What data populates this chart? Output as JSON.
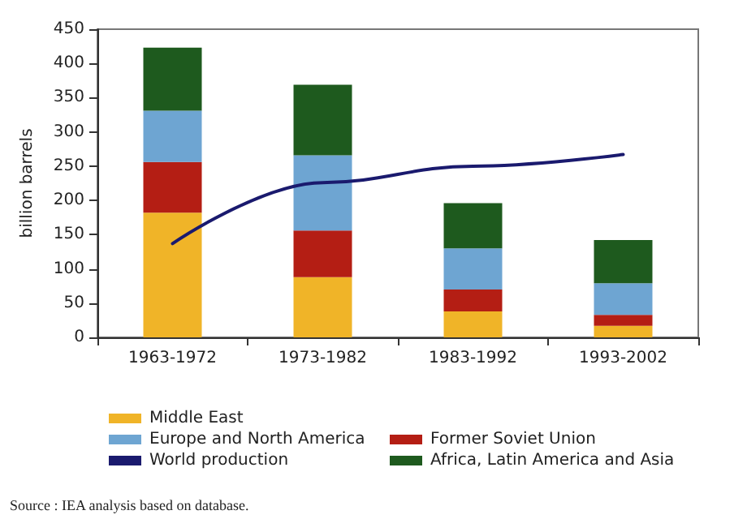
{
  "chart_data": {
    "type": "bar",
    "stacked": true,
    "ylabel": "billion barrels",
    "categories": [
      "1963-1972",
      "1973-1982",
      "1983-1992",
      "1993-2002"
    ],
    "series": [
      {
        "name": "Middle East",
        "color": "#f0b428",
        "values": [
          182,
          88,
          38,
          17
        ]
      },
      {
        "name": "Former Soviet Union",
        "color": "#b41e14",
        "values": [
          74,
          68,
          32,
          16
        ]
      },
      {
        "name": "Europe and North America",
        "color": "#6ea5d2",
        "values": [
          75,
          110,
          60,
          46
        ]
      },
      {
        "name": "Africa, Latin America and Asia",
        "color": "#1e5a1e",
        "values": [
          92,
          103,
          66,
          63
        ]
      },
      {
        "name": "World production",
        "type": "line",
        "color": "#1a1a6e",
        "values": [
          137,
          226,
          250,
          267
        ]
      }
    ],
    "ylim": [
      0,
      450
    ],
    "yticks": [
      0,
      50,
      100,
      150,
      200,
      250,
      300,
      350,
      400,
      450
    ],
    "grid": false,
    "legend": "bottom",
    "marker": "none",
    "line_style": "solid",
    "annotations": [
      "Source : IEA analysis based on database."
    ]
  }
}
